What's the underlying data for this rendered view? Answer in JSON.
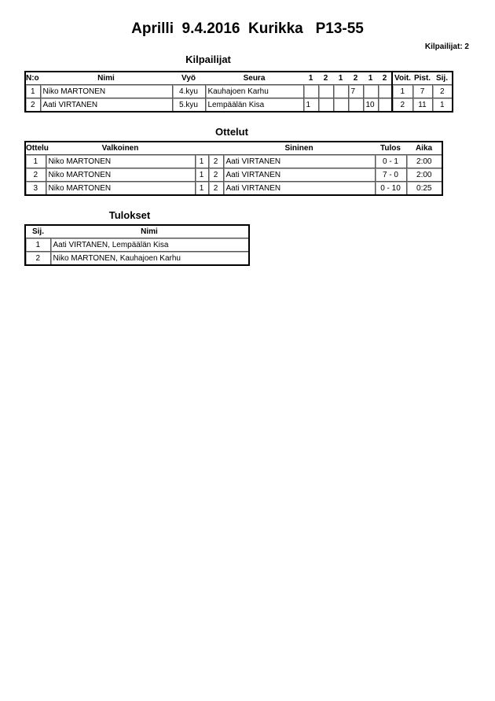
{
  "header": {
    "title": "Aprilli  9.4.2016  Kurikka   P13-55",
    "competitor_count": "Kilpailijat: 2"
  },
  "competitors": {
    "title": "Kilpailijat",
    "columns": [
      "N:o",
      "Nimi",
      "Vyö",
      "Seura",
      "1",
      "2",
      "1",
      "2",
      "1",
      "2",
      "Voit.",
      "Pist.",
      "Sij."
    ],
    "rows": [
      {
        "no": "1",
        "name": "Niko MARTONEN",
        "belt": "4.kyu",
        "club": "Kauhajoen Karhu",
        "scores": [
          "",
          "",
          "",
          "7",
          "",
          ""
        ],
        "wins": "1",
        "points": "7",
        "rank": "2"
      },
      {
        "no": "2",
        "name": "Aati VIRTANEN",
        "belt": "5.kyu",
        "club": "Lempäälän Kisa",
        "scores": [
          "1",
          "",
          "",
          "",
          "10",
          ""
        ],
        "wins": "2",
        "points": "11",
        "rank": "1"
      }
    ]
  },
  "matches": {
    "title": "Ottelut",
    "columns": [
      "Ottelu",
      "Valkoinen",
      "Sininen",
      "Tulos",
      "Aika"
    ],
    "rows": [
      {
        "no": "1",
        "white": "Niko MARTONEN",
        "w": "1",
        "b": "2",
        "blue": "Aati VIRTANEN",
        "result": "0 - 1",
        "time": "2:00"
      },
      {
        "no": "2",
        "white": "Niko MARTONEN",
        "w": "1",
        "b": "2",
        "blue": "Aati VIRTANEN",
        "result": "7 - 0",
        "time": "2:00"
      },
      {
        "no": "3",
        "white": "Niko MARTONEN",
        "w": "1",
        "b": "2",
        "blue": "Aati VIRTANEN",
        "result": "0 - 10",
        "time": "0:25"
      }
    ]
  },
  "results": {
    "title": "Tulokset",
    "columns": [
      "Sij.",
      "Nimi"
    ],
    "rows": [
      {
        "rank": "1",
        "name": "Aati VIRTANEN, Lempäälän Kisa"
      },
      {
        "rank": "2",
        "name": "Niko MARTONEN, Kauhajoen Karhu"
      }
    ]
  }
}
